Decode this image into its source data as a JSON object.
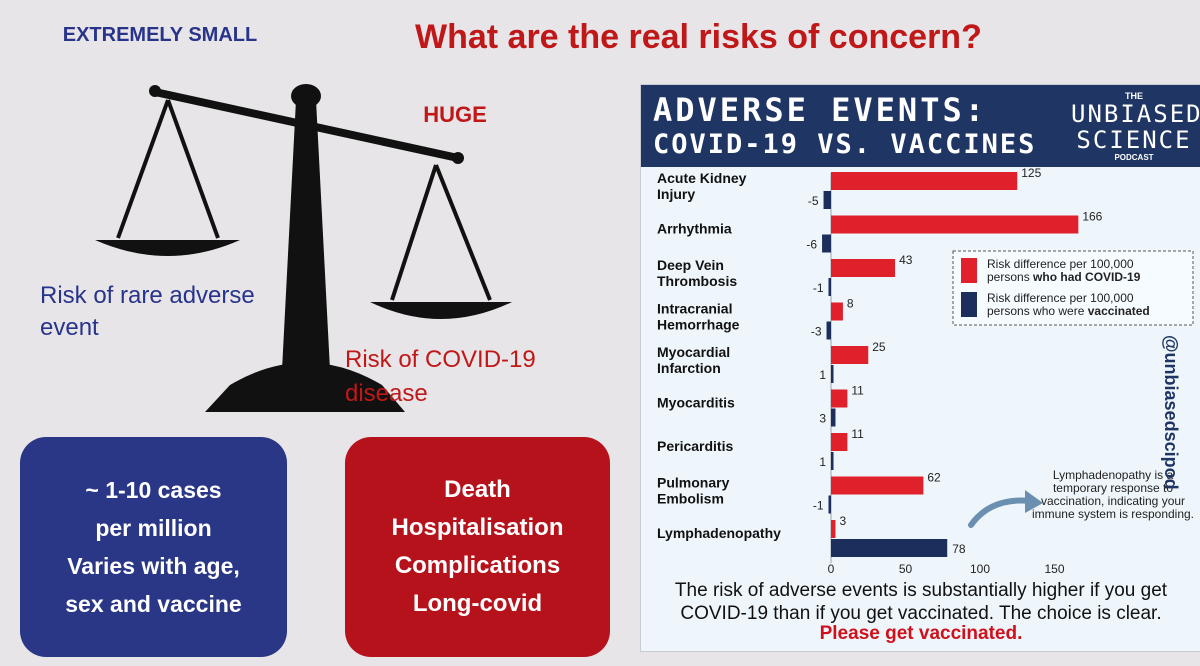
{
  "headline": "What are the real risks of concern?",
  "scale": {
    "small_label": "EXTREMELY SMALL",
    "huge_label": "HUGE",
    "rare_label": "Risk of rare adverse event",
    "covid_label": "Risk of COVID-19 disease"
  },
  "vaccine_card": {
    "lines": [
      "~ 1-10 cases",
      "per million",
      "Varies with age,",
      "sex and vaccine"
    ]
  },
  "covid_card": {
    "lines": [
      "Death",
      "Hospitalisation",
      "Complications",
      "Long-covid"
    ]
  },
  "infographic": {
    "title_line1": "ADVERSE EVENTS:",
    "title_line2": "COVID-19 VS. VACCINES",
    "logo_the": "THE",
    "logo_line1": "UNBIASED",
    "logo_line2": "SCIENCE",
    "logo_podcast": "PODCAST",
    "handle": "@unbiasedscipod",
    "footer": "The risk of adverse events is substantially higher if you get COVID-19 than if you get vaccinated. The choice is clear.",
    "cta": "Please get vaccinated.",
    "annotation": "Lymphadenopathy is a temporary response to vaccination, indicating your immune system is responding."
  },
  "chart_data": {
    "type": "bar",
    "orientation": "horizontal",
    "categories": [
      [
        "Acute Kidney",
        "Injury"
      ],
      [
        "Arrhythmia"
      ],
      [
        "Deep Vein",
        "Thrombosis"
      ],
      [
        "Intracranial",
        "Hemorrhage"
      ],
      [
        "Myocardial",
        "Infarction"
      ],
      [
        "Myocarditis"
      ],
      [
        "Pericarditis"
      ],
      [
        "Pulmonary",
        "Embolism"
      ],
      [
        "Lymphadenopathy"
      ]
    ],
    "series": [
      {
        "name": "Risk difference per 100,000 persons who had COVID-19",
        "color": "#e0202a",
        "values": [
          125,
          166,
          43,
          8,
          25,
          11,
          11,
          62,
          3
        ]
      },
      {
        "name": "Risk difference per 100,000 persons who were vaccinated",
        "color": "#1c2e5c",
        "values": [
          -5,
          -6,
          -1,
          -3,
          1,
          3,
          1,
          -1,
          78
        ]
      }
    ],
    "xlim": [
      0,
      175
    ],
    "xticks": [
      0,
      50,
      100,
      150
    ],
    "legend": {
      "position": "right",
      "covid": {
        "prefix": "Risk difference per 100,000",
        "mid": "persons ",
        "bold": "who had COVID-19"
      },
      "vax": {
        "prefix": "Risk difference per 100,000",
        "mid": "persons who were ",
        "bold": "vaccinated"
      }
    }
  }
}
